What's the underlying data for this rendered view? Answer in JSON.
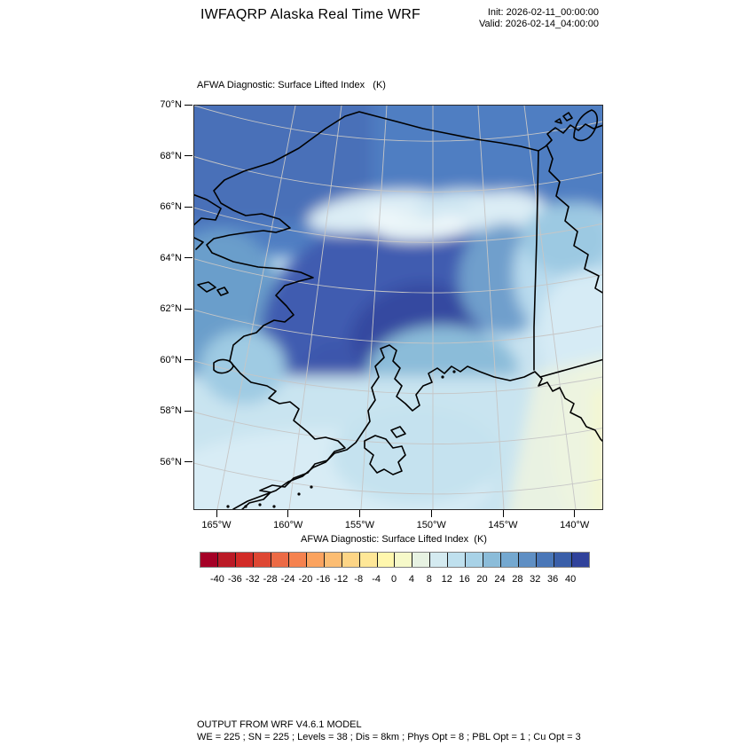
{
  "header": {
    "title": "IWFAQRP Alaska Real Time WRF",
    "init_label": "Init: 2026-02-11_00:00:00",
    "valid_label": "Valid: 2026-02-14_04:00:00"
  },
  "plot": {
    "title": "AFWA Diagnostic: Surface Lifted Index   (K)"
  },
  "chart_data": {
    "type": "heatmap",
    "title": "AFWA Diagnostic: Surface Lifted Index (K)",
    "projection_note": "polar map of Alaska with coastlines, 141W border and faint lat/lon graticule",
    "x_ticks": [
      "165°W",
      "160°W",
      "155°W",
      "150°W",
      "145°W",
      "140°W"
    ],
    "y_ticks": [
      "70°N",
      "68°N",
      "66°N",
      "64°N",
      "62°N",
      "60°N",
      "58°N",
      "56°N"
    ],
    "colorbar": {
      "title": "AFWA Diagnostic: Surface Lifted Index  (K)",
      "tick_values": [
        -40,
        -36,
        -32,
        -28,
        -24,
        -20,
        -16,
        -12,
        -8,
        -4,
        0,
        4,
        8,
        12,
        16,
        20,
        24,
        28,
        32,
        36,
        40
      ],
      "colors": [
        "#a50026",
        "#bb1a26",
        "#d22b27",
        "#de4733",
        "#ec6a45",
        "#f5824f",
        "#fba35f",
        "#fcbd73",
        "#fdd586",
        "#fee797",
        "#fff7ad",
        "#f6f9c9",
        "#e7f2e2",
        "#d4eaf0",
        "#bfe0ee",
        "#a8d2e7",
        "#8bbcd9",
        "#74a8d0",
        "#5f8fc4",
        "#4a77b8",
        "#3a5fa9",
        "#30429b"
      ]
    },
    "approx_field_K": {
      "note": "coarse visual estimate of plotted lifted-index field, rows north to south",
      "lats": [
        70,
        68,
        66,
        64,
        62,
        60,
        58,
        56
      ],
      "lons": [
        -165,
        -162.5,
        -160,
        -157.5,
        -155,
        -152.5,
        -150,
        -147.5,
        -145,
        -142.5
      ],
      "values": [
        [
          34,
          34,
          35,
          36,
          36,
          34,
          32,
          30,
          28,
          27
        ],
        [
          32,
          34,
          36,
          36,
          34,
          30,
          18,
          14,
          20,
          24
        ],
        [
          30,
          34,
          38,
          30,
          14,
          10,
          22,
          16,
          12,
          10
        ],
        [
          30,
          36,
          40,
          42,
          38,
          30,
          24,
          18,
          12,
          10
        ],
        [
          24,
          30,
          38,
          42,
          40,
          30,
          20,
          14,
          10,
          8
        ],
        [
          14,
          18,
          30,
          36,
          26,
          18,
          14,
          12,
          8,
          6
        ],
        [
          12,
          12,
          16,
          22,
          16,
          12,
          10,
          8,
          6,
          4
        ],
        [
          12,
          12,
          12,
          14,
          12,
          10,
          8,
          6,
          4,
          2
        ]
      ]
    }
  },
  "footer": {
    "line1": "OUTPUT FROM WRF V4.6.1 MODEL",
    "line2": "WE = 225 ; SN = 225 ; Levels = 38 ; Dis = 8km ; Phys Opt = 8 ; PBL Opt = 1 ; Cu Opt = 3"
  }
}
